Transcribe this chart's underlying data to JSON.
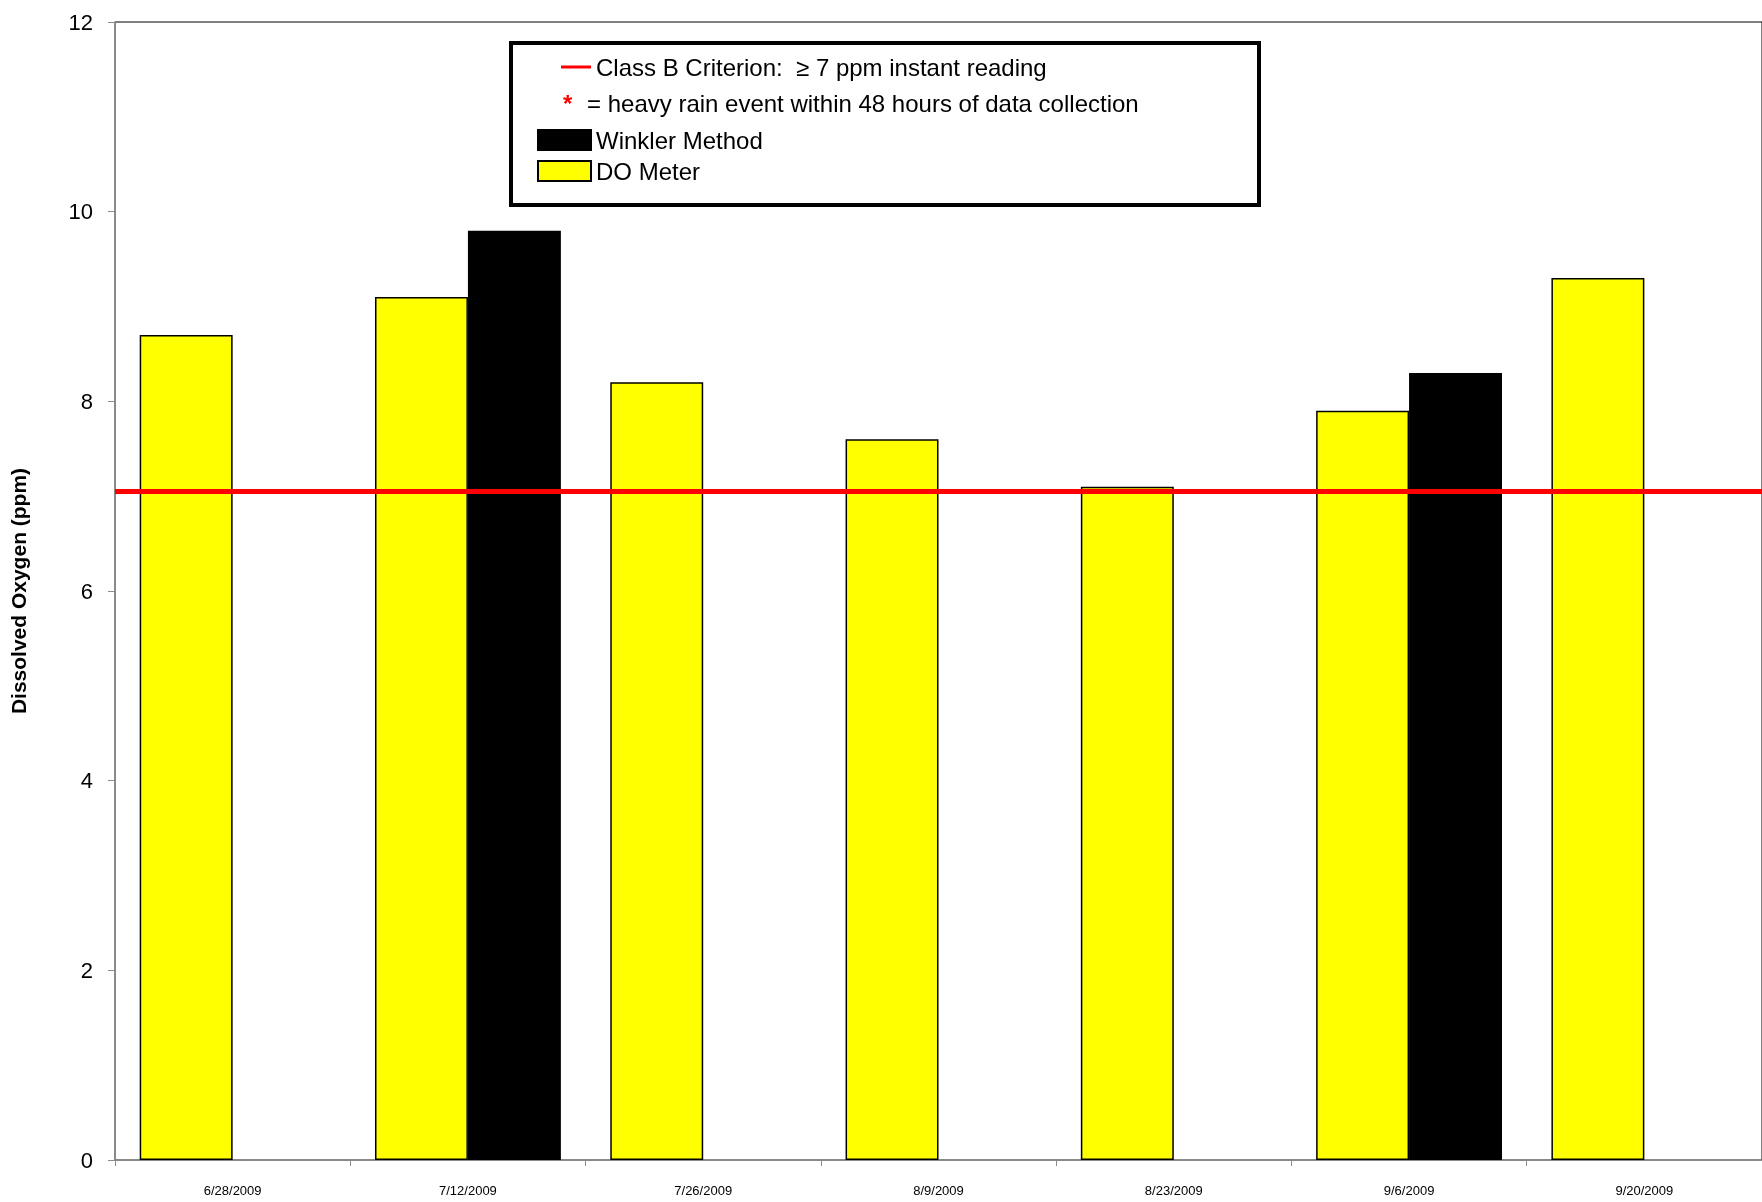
{
  "chart_data": {
    "type": "bar",
    "ylabel": "Dissolved Oxygen (ppm)",
    "categories": [
      "6/28/2009",
      "7/12/2009",
      "7/26/2009",
      "8/9/2009",
      "8/23/2009",
      "9/6/2009",
      "9/20/2009"
    ],
    "series": [
      {
        "name": "DO Meter",
        "color": "#ffff00",
        "values": [
          8.7,
          9.1,
          8.2,
          7.6,
          7.1,
          7.9,
          9.3
        ]
      },
      {
        "name": "Winkler Method",
        "color": "#000000",
        "values": [
          null,
          9.8,
          null,
          null,
          null,
          8.3,
          null
        ]
      }
    ],
    "ylim": [
      0,
      12
    ],
    "yticks": [
      0,
      2,
      4,
      6,
      8,
      10,
      12
    ],
    "grid": false,
    "legend": "top",
    "ref_lines": [
      {
        "axis": "y",
        "value": 7.05,
        "label": "Class B Criterion:  ≥ 7 ppm instant reading",
        "color": "#ff0000"
      }
    ],
    "annotations": [
      "* = heavy rain event within 48 hours of data collection"
    ]
  }
}
